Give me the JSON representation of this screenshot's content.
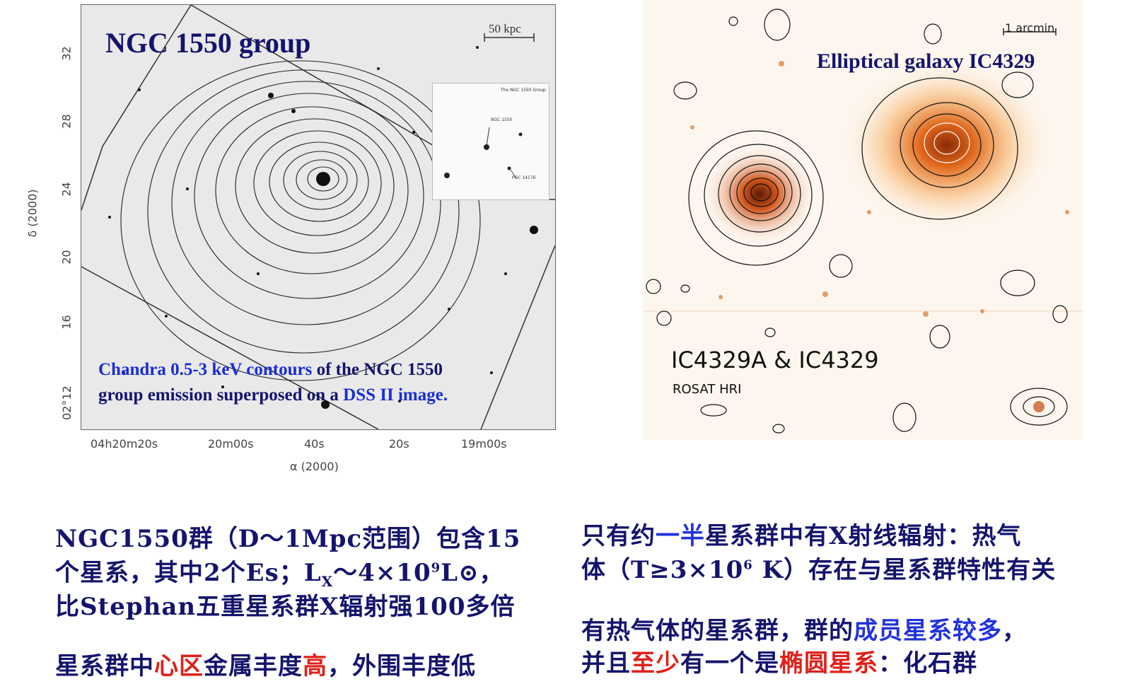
{
  "left_figure": {
    "title": "NGC 1550 group",
    "scale_label": "50 kpc",
    "caption_part1": "Chandra 0.5-3 keV contours",
    "caption_part2": " of the NGC 1550",
    "caption_part3": "group emission superposed on a ",
    "caption_part4": "DSS II image.",
    "inset_label_top": "The NGC 1550 Group",
    "inset_label_ngc": "NGC 1550",
    "inset_label_pgc": "PGC 14176",
    "y_axis_label": "δ (2000)",
    "y_ticks": [
      "32",
      "28",
      "24",
      "20",
      "16",
      "02°12"
    ],
    "x_ticks": [
      "04h20m20s",
      "20m00s",
      "40s",
      "20s",
      "19m00s"
    ],
    "x_axis_label": "α (2000)"
  },
  "right_figure": {
    "title": "Elliptical galaxy IC4329",
    "scale_label": "1 arcmin",
    "label_main": "IC4329A & IC4329",
    "label_sub": "ROSAT HRI"
  },
  "bottom_left": {
    "line1": "NGC1550群（D～1Mpc范围）包含15",
    "line2": "个星系，其中2个Es；L",
    "line2_sub": "X",
    "line2_b": "～4×10",
    "line2_sup": "9",
    "line2_c": "L⊙，",
    "line3": "比Stephan五重星系群X辐射强100多倍",
    "line4_a": "星系群中",
    "line4_red1": "心区",
    "line4_b": "金属丰度",
    "line4_red2": "高",
    "line4_c": "，外围丰度低"
  },
  "bottom_right": {
    "line1_a": "只有约",
    "line1_blue": "一半",
    "line1_b": "星系群中有X射线辐射：热气",
    "line2_a": "体（T≥3×10",
    "line2_sup": "6",
    "line2_b": " K）存在与星系群特性有关",
    "line3_a": "有热气体的星系群，群的",
    "line3_blue": "成员星系较多",
    "line3_b": "，",
    "line4_a": "并且",
    "line4_red": "至少",
    "line4_b": "有一个是",
    "line4_red2": "椭圆星系",
    "line4_c": "：化石群"
  }
}
